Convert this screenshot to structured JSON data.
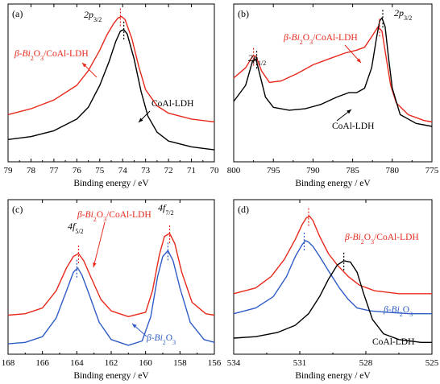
{
  "colors": {
    "red": "#e8291c",
    "black": "#000000",
    "blue": "#2f5cc7",
    "axis": "#000000"
  },
  "chart_data": [
    {
      "panel_label": "(a)",
      "type": "line",
      "xlabel": "Binding energy / eV",
      "xlim": [
        79,
        70
      ],
      "x_ticks": [
        "79",
        "78",
        "77",
        "76",
        "75",
        "74",
        "73",
        "72",
        "71",
        "70"
      ],
      "peak_labels": [
        {
          "main": "2p",
          "sub": "3/2"
        }
      ],
      "series": [
        {
          "name": "β-Bi2O3/CoAl-LDH",
          "name_parts": [
            "β-Bi",
            "2",
            "O",
            "3",
            "/CoAl-LDH"
          ],
          "color": "red",
          "x": [
            79,
            78,
            77,
            76,
            75.5,
            75,
            74.7,
            74.4,
            74.2,
            74.05,
            73.9,
            73.6,
            73.3,
            73.0,
            72.5,
            72,
            71,
            70
          ],
          "y": [
            0.3,
            0.34,
            0.4,
            0.5,
            0.6,
            0.74,
            0.84,
            0.92,
            0.96,
            0.97,
            0.95,
            0.82,
            0.63,
            0.47,
            0.36,
            0.31,
            0.27,
            0.25
          ]
        },
        {
          "name": "CoAl-LDH",
          "name_parts": [
            "CoAl-LDH"
          ],
          "color": "black",
          "x": [
            79,
            78,
            77,
            76,
            75.5,
            75,
            74.6,
            74.3,
            74.1,
            73.95,
            73.8,
            73.5,
            73.2,
            72.9,
            72.5,
            72,
            71,
            70
          ],
          "y": [
            0.13,
            0.15,
            0.19,
            0.27,
            0.35,
            0.5,
            0.66,
            0.8,
            0.87,
            0.88,
            0.85,
            0.68,
            0.46,
            0.29,
            0.18,
            0.12,
            0.08,
            0.06
          ]
        }
      ],
      "peak_markers": [
        {
          "color": "red",
          "x": 74.1
        },
        {
          "color": "black",
          "x": 73.95
        }
      ]
    },
    {
      "panel_label": "(b)",
      "type": "line",
      "xlabel": "Binding energy / eV",
      "xlim": [
        800,
        775
      ],
      "x_ticks": [
        "800",
        "795",
        "790",
        "785",
        "780",
        "775"
      ],
      "peak_labels": [
        {
          "main": "2p",
          "sub": "1/2"
        },
        {
          "main": "2p",
          "sub": "3/2"
        }
      ],
      "series": [
        {
          "name": "β-Bi2O3/CoAl-LDH",
          "name_parts": [
            "β-Bi",
            "2",
            "O",
            "3",
            "/CoAl-LDH"
          ],
          "color": "red",
          "x": [
            800,
            798.5,
            797.6,
            797.2,
            796.5,
            795.5,
            794,
            792,
            790,
            788,
            786,
            784.5,
            783.5,
            782.5,
            781.8,
            781.3,
            780.8,
            780.2,
            779.5,
            778,
            776,
            775
          ],
          "y": [
            0.55,
            0.62,
            0.7,
            0.7,
            0.6,
            0.52,
            0.53,
            0.58,
            0.64,
            0.68,
            0.72,
            0.74,
            0.76,
            0.84,
            0.9,
            0.87,
            0.7,
            0.5,
            0.38,
            0.3,
            0.26,
            0.25
          ]
        },
        {
          "name": "CoAl-LDH",
          "name_parts": [
            "CoAl-LDH"
          ],
          "color": "black",
          "x": [
            800,
            798.5,
            797.6,
            797.2,
            796.6,
            796,
            795,
            793,
            791,
            789,
            787,
            785.5,
            784.5,
            783.5,
            782.6,
            782,
            781.6,
            781.3,
            780.9,
            780.5,
            780,
            779,
            777,
            775
          ],
          "y": [
            0.39,
            0.5,
            0.67,
            0.68,
            0.55,
            0.42,
            0.35,
            0.33,
            0.34,
            0.37,
            0.42,
            0.45,
            0.45,
            0.48,
            0.62,
            0.82,
            0.94,
            0.96,
            0.9,
            0.7,
            0.48,
            0.3,
            0.24,
            0.22
          ]
        }
      ],
      "peak_markers": [
        {
          "color": "red",
          "x": 797.5
        },
        {
          "color": "black",
          "x": 797.1
        },
        {
          "color": "red",
          "x": 781.6
        },
        {
          "color": "black",
          "x": 781.2
        }
      ]
    },
    {
      "panel_label": "(c)",
      "type": "line",
      "xlabel": "Binding energy / eV",
      "xlim": [
        168,
        156
      ],
      "x_ticks": [
        "168",
        "166",
        "164",
        "162",
        "160",
        "158",
        "156"
      ],
      "peak_labels": [
        {
          "main": "4f",
          "sub": "5/2"
        },
        {
          "main": "4f",
          "sub": "7/2"
        }
      ],
      "series": [
        {
          "name": "β-Bi2O3/CoAl-LDH",
          "name_parts": [
            "β-Bi",
            "2",
            "O",
            "3",
            "/CoAl-LDH"
          ],
          "color": "red",
          "x": [
            168,
            167,
            166,
            165.2,
            164.6,
            164.2,
            163.9,
            163.6,
            163.2,
            162.6,
            162,
            161,
            160,
            159.6,
            159.2,
            158.9,
            158.6,
            158.3,
            157.9,
            157.3,
            156.5,
            156
          ],
          "y": [
            0.25,
            0.26,
            0.3,
            0.42,
            0.58,
            0.66,
            0.68,
            0.63,
            0.52,
            0.36,
            0.28,
            0.24,
            0.27,
            0.42,
            0.67,
            0.8,
            0.82,
            0.75,
            0.55,
            0.34,
            0.26,
            0.25
          ]
        },
        {
          "name": "β-Bi2O3",
          "name_parts": [
            "β-Bi",
            "2",
            "O",
            "3"
          ],
          "color": "blue",
          "x": [
            168,
            167,
            166,
            165.2,
            164.6,
            164.2,
            163.95,
            163.7,
            163.3,
            162.7,
            162,
            161,
            160.2,
            159.7,
            159.3,
            159,
            158.7,
            158.4,
            158,
            157.4,
            156.6,
            156
          ],
          "y": [
            0.05,
            0.06,
            0.1,
            0.23,
            0.42,
            0.55,
            0.58,
            0.53,
            0.4,
            0.2,
            0.08,
            0.04,
            0.07,
            0.24,
            0.52,
            0.66,
            0.7,
            0.63,
            0.44,
            0.2,
            0.08,
            0.06
          ]
        }
      ],
      "peak_markers": [
        {
          "color": "red",
          "x": 163.9
        },
        {
          "color": "blue",
          "x": 164.0
        },
        {
          "color": "red",
          "x": 158.6
        },
        {
          "color": "blue",
          "x": 158.7
        }
      ]
    },
    {
      "panel_label": "(d)",
      "type": "line",
      "xlabel": "Binding energy / eV",
      "xlim": [
        534,
        525
      ],
      "x_ticks": [
        "534",
        "531",
        "528",
        "525"
      ],
      "peak_labels": [],
      "series": [
        {
          "name": "β-Bi2O3/CoAl-LDH",
          "name_parts": [
            "β-Bi",
            "2",
            "O",
            "3",
            "/CoAl-LDH"
          ],
          "color": "red",
          "x": [
            534,
            533,
            532.3,
            531.7,
            531.2,
            530.9,
            530.7,
            530.55,
            530.4,
            530.1,
            529.7,
            529.3,
            528.8,
            528.3,
            527.6,
            526.5,
            525
          ],
          "y": [
            0.4,
            0.44,
            0.52,
            0.64,
            0.78,
            0.88,
            0.93,
            0.94,
            0.91,
            0.8,
            0.68,
            0.6,
            0.52,
            0.46,
            0.42,
            0.4,
            0.4
          ]
        },
        {
          "name": "β-Bi2O3",
          "name_parts": [
            "β-Bi",
            "2",
            "O",
            "3"
          ],
          "color": "blue",
          "x": [
            534,
            533,
            532.2,
            531.6,
            531.2,
            530.9,
            530.75,
            530.6,
            530.4,
            530.1,
            529.7,
            529.2,
            528.8,
            528.4,
            527.8,
            527,
            526,
            525
          ],
          "y": [
            0.26,
            0.3,
            0.38,
            0.52,
            0.66,
            0.74,
            0.77,
            0.76,
            0.73,
            0.66,
            0.56,
            0.44,
            0.36,
            0.3,
            0.28,
            0.27,
            0.26,
            0.26
          ]
        },
        {
          "name": "CoAl-LDH",
          "name_parts": [
            "CoAl-LDH"
          ],
          "color": "black",
          "x": [
            534,
            533,
            532,
            531.2,
            530.6,
            530.1,
            529.7,
            529.3,
            529.0,
            528.7,
            528.4,
            528.1,
            527.7,
            527.2,
            526.5,
            525.5,
            525
          ],
          "y": [
            0.09,
            0.1,
            0.13,
            0.18,
            0.26,
            0.38,
            0.5,
            0.6,
            0.63,
            0.62,
            0.55,
            0.4,
            0.22,
            0.12,
            0.08,
            0.06,
            0.06
          ]
        }
      ],
      "peak_markers": [
        {
          "color": "red",
          "x": 530.6
        },
        {
          "color": "blue",
          "x": 530.8
        },
        {
          "color": "black",
          "x": 529.0
        }
      ]
    }
  ]
}
